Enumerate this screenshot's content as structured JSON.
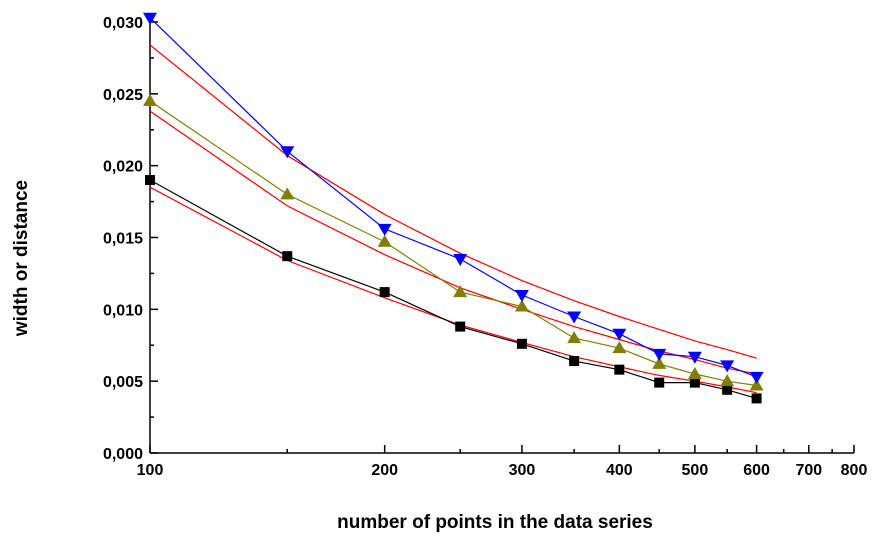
{
  "chart_data": {
    "type": "line",
    "title": "",
    "xlabel": "number of points in the data series",
    "ylabel": "width or distance",
    "x_scale": "log",
    "xlim": [
      100,
      800
    ],
    "ylim": [
      0,
      0.03
    ],
    "grid": false,
    "legend": "none",
    "x_ticks": [
      {
        "value": 100,
        "label": "100"
      },
      {
        "value": 200,
        "label": "200"
      },
      {
        "value": 300,
        "label": "300"
      },
      {
        "value": 400,
        "label": "400"
      },
      {
        "value": 500,
        "label": "500"
      },
      {
        "value": 600,
        "label": "600"
      },
      {
        "value": 700,
        "label": "700"
      },
      {
        "value": 800,
        "label": "800"
      }
    ],
    "y_ticks": [
      {
        "value": 0,
        "label": "0,000"
      },
      {
        "value": 0.005,
        "label": "0,005"
      },
      {
        "value": 0.01,
        "label": "0,010"
      },
      {
        "value": 0.015,
        "label": "0,015"
      },
      {
        "value": 0.02,
        "label": "0,020"
      },
      {
        "value": 0.025,
        "label": "0,025"
      },
      {
        "value": 0.03,
        "label": "0,030"
      }
    ],
    "series": [
      {
        "color": "#000000",
        "marker": "square",
        "x": [
          100,
          150,
          200,
          250,
          300,
          350,
          400,
          450,
          500,
          550,
          600
        ],
        "y": [
          0.019,
          0.0137,
          0.0112,
          0.0088,
          0.0076,
          0.0064,
          0.0058,
          0.0049,
          0.0049,
          0.0044,
          0.0038
        ]
      },
      {
        "color": "#808000",
        "marker": "triangle-up",
        "x": [
          100,
          150,
          200,
          250,
          300,
          350,
          400,
          450,
          500,
          550,
          600
        ],
        "y": [
          0.0245,
          0.018,
          0.0147,
          0.0112,
          0.0102,
          0.008,
          0.0073,
          0.0062,
          0.0055,
          0.005,
          0.0047
        ]
      },
      {
        "color": "#0000ff",
        "marker": "triangle-down",
        "x": [
          100,
          150,
          200,
          250,
          300,
          350,
          400,
          450,
          500,
          550,
          600
        ],
        "y": [
          0.0303,
          0.021,
          0.0156,
          0.0135,
          0.011,
          0.0095,
          0.0083,
          0.0069,
          0.0067,
          0.0061,
          0.0053
        ]
      }
    ],
    "fit_curves": [
      {
        "color": "#ff0000",
        "x": [
          100,
          150,
          200,
          250,
          300,
          350,
          400,
          450,
          500,
          550,
          600
        ],
        "y": [
          0.0185,
          0.0134,
          0.0108,
          0.0089,
          0.0077,
          0.0067,
          0.006,
          0.0054,
          0.005,
          0.0046,
          0.0042
        ]
      },
      {
        "color": "#ff0000",
        "x": [
          100,
          150,
          200,
          250,
          300,
          350,
          400,
          450,
          500,
          550,
          600
        ],
        "y": [
          0.0238,
          0.0172,
          0.0138,
          0.0115,
          0.01,
          0.0088,
          0.0079,
          0.0071,
          0.0065,
          0.0059,
          0.0055
        ]
      },
      {
        "color": "#ff0000",
        "x": [
          100,
          150,
          200,
          250,
          300,
          350,
          400,
          450,
          500,
          550,
          600
        ],
        "y": [
          0.0284,
          0.0207,
          0.0166,
          0.0139,
          0.012,
          0.0106,
          0.0095,
          0.0086,
          0.0078,
          0.0072,
          0.0066
        ]
      }
    ]
  }
}
